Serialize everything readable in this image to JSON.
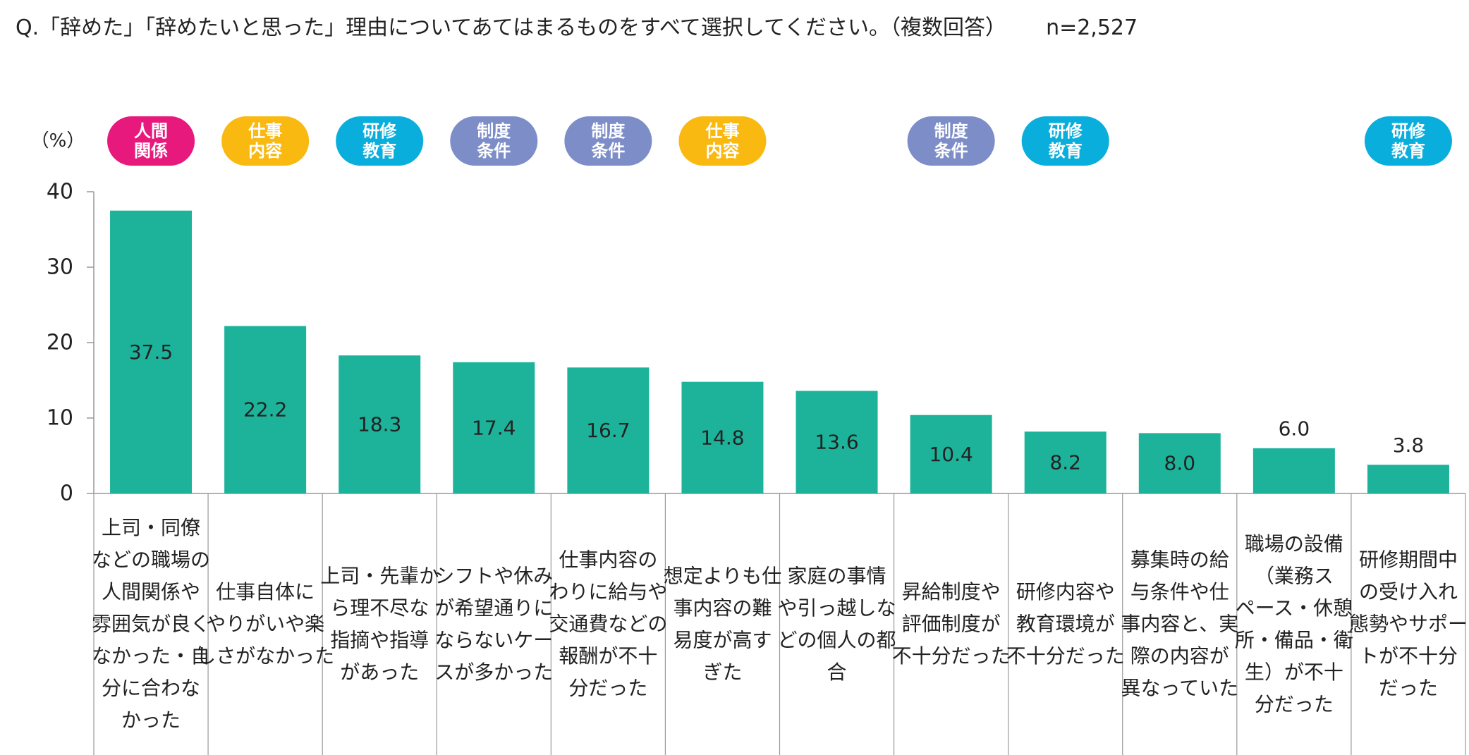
{
  "question": {
    "text": "Q.「辞めた」「辞めたいと思った」理由についてあてはまるものをすべて選択してください。（複数回答）",
    "n": "n=2,527"
  },
  "colors": {
    "bar": "#1db39b",
    "jinkan": "#e8197d",
    "shigoto": "#f9b911",
    "kenshu": "#0aaedc",
    "seido": "#7d8dc8"
  },
  "chart_data": {
    "type": "bar",
    "ylabel": "（%）",
    "ylim": [
      0,
      40
    ],
    "yticks": [
      0,
      10,
      20,
      30,
      40
    ],
    "categories": [
      "上司・同僚などの職場の人間関係や雰囲気が良くなかった・自分に合わなかった",
      "仕事自体にやりがいや楽しさがなかった",
      "上司・先輩から理不尽な指摘や指導があった",
      "シフトや休みが希望通りにならないケースが多かった",
      "仕事内容のわりに給与や交通費などの報酬が不十分だった",
      "想定よりも仕事内容の難易度が高すぎた",
      "家庭の事情や引っ越しなどの個人の都合",
      "昇給制度や評価制度が不十分だった",
      "研修内容や教育環境が不十分だった",
      "募集時の給与条件や仕事内容と、実際の内容が異なっていた",
      "職場の設備（業務スペース・休憩所・備品・衛生）が不十分だった",
      "研修期間中の受け入れ態勢やサポートが不十分だった"
    ],
    "category_lines": [
      [
        "上司・同僚",
        "などの職場の",
        "人間関係や",
        "雰囲気が良く",
        "なかった・自",
        "分に合わな",
        "かった"
      ],
      [
        "仕事自体に",
        "やりがいや楽",
        "しさがなかった"
      ],
      [
        "上司・先輩か",
        "ら理不尽な",
        "指摘や指導",
        "があった"
      ],
      [
        "シフトや休み",
        "が希望通りに",
        "ならないケー",
        "スが多かった"
      ],
      [
        "仕事内容の",
        "わりに給与や",
        "交通費などの",
        "報酬が不十",
        "分だった"
      ],
      [
        "想定よりも仕",
        "事内容の難",
        "易度が高す",
        "ぎた"
      ],
      [
        "家庭の事情",
        "や引っ越しな",
        "どの個人の都",
        "合"
      ],
      [
        "昇給制度や",
        "評価制度が",
        "不十分だった"
      ],
      [
        "研修内容や",
        "教育環境が",
        "不十分だった"
      ],
      [
        "募集時の給",
        "与条件や仕",
        "事内容と、実",
        "際の内容が",
        "異なっていた"
      ],
      [
        "職場の設備",
        "（業務ス",
        "ペース・休憩",
        "所・備品・衛",
        "生）が不十",
        "分だった"
      ],
      [
        "研修期間中",
        "の受け入れ",
        "態勢やサポー",
        "トが不十分",
        "だった"
      ]
    ],
    "values": [
      37.5,
      22.2,
      18.3,
      17.4,
      16.7,
      14.8,
      13.6,
      10.4,
      8.2,
      8.0,
      6.0,
      3.8
    ],
    "value_labels": [
      "37.5",
      "22.2",
      "18.3",
      "17.4",
      "16.7",
      "14.8",
      "13.6",
      "10.4",
      "8.2",
      "8.0",
      "6.0",
      "3.8"
    ],
    "tags": [
      {
        "lines": [
          "人間",
          "関係"
        ],
        "type": "jinkan"
      },
      {
        "lines": [
          "仕事",
          "内容"
        ],
        "type": "shigoto"
      },
      {
        "lines": [
          "研修",
          "教育"
        ],
        "type": "kenshu"
      },
      {
        "lines": [
          "制度",
          "条件"
        ],
        "type": "seido"
      },
      {
        "lines": [
          "制度",
          "条件"
        ],
        "type": "seido"
      },
      {
        "lines": [
          "仕事",
          "内容"
        ],
        "type": "shigoto"
      },
      null,
      {
        "lines": [
          "制度",
          "条件"
        ],
        "type": "seido"
      },
      {
        "lines": [
          "研修",
          "教育"
        ],
        "type": "kenshu"
      },
      null,
      null,
      {
        "lines": [
          "研修",
          "教育"
        ],
        "type": "kenshu"
      }
    ]
  }
}
